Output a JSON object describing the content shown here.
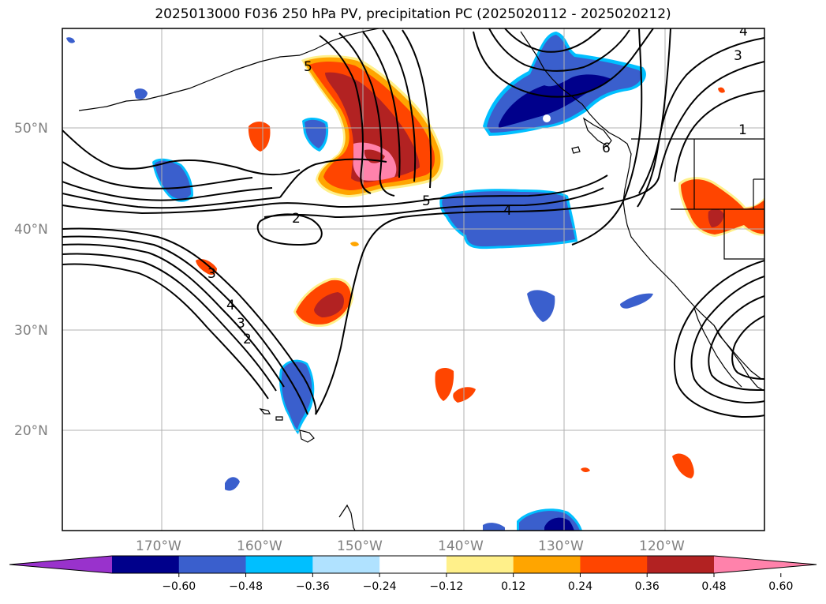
{
  "title": "2025013000 F036 250 hPa PV, precipitation PC (2025020112 - 2025020212)",
  "map": {
    "lat_labels": [
      "50°N",
      "40°N",
      "30°N",
      "20°N"
    ],
    "lon_labels": [
      "170°W",
      "160°W",
      "150°W",
      "140°W",
      "130°W",
      "120°W"
    ],
    "contour_labels": [
      "2",
      "3",
      "4",
      "5",
      "6",
      "1",
      "2",
      "3",
      "4",
      "5",
      "4",
      "3"
    ],
    "grid": true
  },
  "colorbar": {
    "ticks": [
      "−0.60",
      "−0.48",
      "−0.36",
      "−0.24",
      "−0.12",
      "0.12",
      "0.24",
      "0.36",
      "0.48",
      "0.60"
    ],
    "colors": [
      "#9932cc",
      "#00008b",
      "#3a5fcd",
      "#00bfff",
      "#b0e2ff",
      "#ffffff",
      "#fff08a",
      "#ffa500",
      "#ff4500",
      "#b22222",
      "#ff82ab"
    ],
    "extend": "both"
  },
  "colors": {
    "neg_dark": "#00008b",
    "neg_mid": "#3a5fcd",
    "neg_light": "#00bfff",
    "pos_yellow": "#fff08a",
    "pos_orange": "#ffa500",
    "pos_red": "#ff4500",
    "pos_darkred": "#b22222",
    "pos_pink": "#ff82ab",
    "grid": "#b0b0b0"
  }
}
